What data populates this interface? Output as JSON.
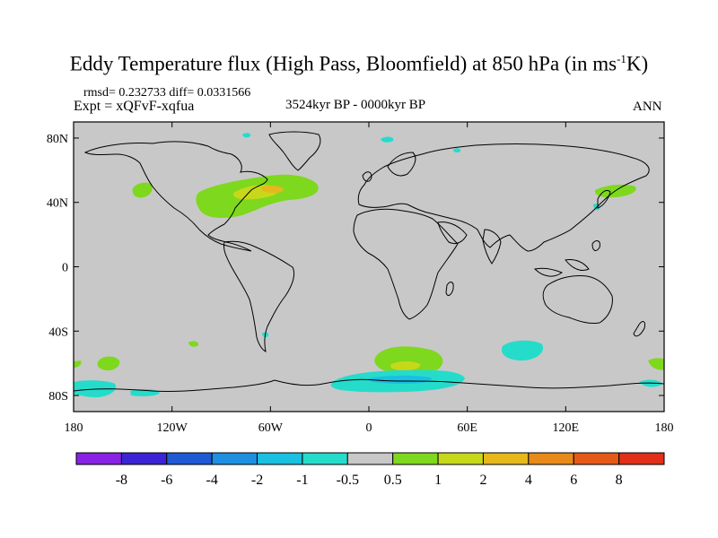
{
  "title": {
    "main": "Eddy Temperature flux (High Pass, Bloomfield) at 850 hPa (in ms",
    "sup": "-1",
    "tail": "K)"
  },
  "subtitle": {
    "stats": "rmsd= 0.232733 diff= 0.0331566",
    "expt": "Expt = xQFvF-xqfua",
    "period": "3524kyr BP - 0000kyr BP",
    "season": "ANN"
  },
  "axes": {
    "x_ticks": [
      "180",
      "120W",
      "60W",
      "0",
      "60E",
      "120E",
      "180"
    ],
    "y_ticks": [
      "80N",
      "40N",
      "0",
      "40S",
      "80S"
    ]
  },
  "colorbar": {
    "labels": [
      "-8",
      "-6",
      "-4",
      "-2",
      "-1",
      "-0.5",
      "0.5",
      "1",
      "2",
      "4",
      "6",
      "8"
    ],
    "colors": [
      "#8a22e6",
      "#3b24d6",
      "#1f5ad4",
      "#1f8fe0",
      "#19c0e0",
      "#25dccb",
      "#c8c8c8",
      "#7ed81e",
      "#c7d81a",
      "#e6b81c",
      "#e88a1a",
      "#e65a19",
      "#e0301a"
    ]
  },
  "chart_data": {
    "type": "heatmap",
    "title": "Eddy Temperature flux (High Pass, Bloomfield) at 850 hPa (in ms-1K)",
    "variable": "Eddy Temperature flux difference",
    "units": "ms-1K",
    "lon_range": [
      -180,
      180
    ],
    "lat_range": [
      -90,
      90
    ],
    "levels": [
      -8,
      -6,
      -4,
      -2,
      -1,
      -0.5,
      0.5,
      1,
      2,
      4,
      6,
      8
    ],
    "background_range": [
      -0.5,
      0.5
    ],
    "features": [
      {
        "name": "North America / NW Atlantic",
        "lon": [
          -103,
          -32
        ],
        "lat": [
          28,
          56
        ],
        "min_level": 0.5,
        "max_level": 2
      },
      {
        "name": "North Pacific",
        "lon": [
          -145,
          -133
        ],
        "lat": [
          40,
          50
        ],
        "min_level": 0.5,
        "max_level": 1
      },
      {
        "name": "NW Pacific / Japan",
        "lon": [
          136,
          165
        ],
        "lat": [
          38,
          50
        ],
        "min_level": 0.5,
        "max_level": 1
      },
      {
        "name": "South Atlantic / S Indian",
        "lon": [
          10,
          52
        ],
        "lat": [
          -62,
          -50
        ],
        "min_level": 0.5,
        "max_level": 2
      },
      {
        "name": "South Indian Ocean",
        "lon": [
          76,
          102
        ],
        "lat": [
          -55,
          -45
        ],
        "min_level": -1,
        "max_level": -0.5
      },
      {
        "name": "South Pacific",
        "lon": [
          -165,
          -150
        ],
        "lat": [
          -65,
          -58
        ],
        "min_level": 0.5,
        "max_level": 1
      },
      {
        "name": "Antarctic coast (Weddell to East Antarctica)",
        "lon": [
          -20,
          60
        ],
        "lat": [
          -78,
          -64
        ],
        "min_level": -1,
        "max_level": -0.5
      },
      {
        "name": "Ross Sea",
        "lon": [
          -180,
          -150
        ],
        "lat": [
          -80,
          -72
        ],
        "min_level": -1,
        "max_level": -0.5
      },
      {
        "name": "Arctic (Baffin Bay)",
        "lon": [
          -75,
          -60
        ],
        "lat": [
          68,
          73
        ],
        "min_level": -1,
        "max_level": -0.5
      }
    ]
  }
}
